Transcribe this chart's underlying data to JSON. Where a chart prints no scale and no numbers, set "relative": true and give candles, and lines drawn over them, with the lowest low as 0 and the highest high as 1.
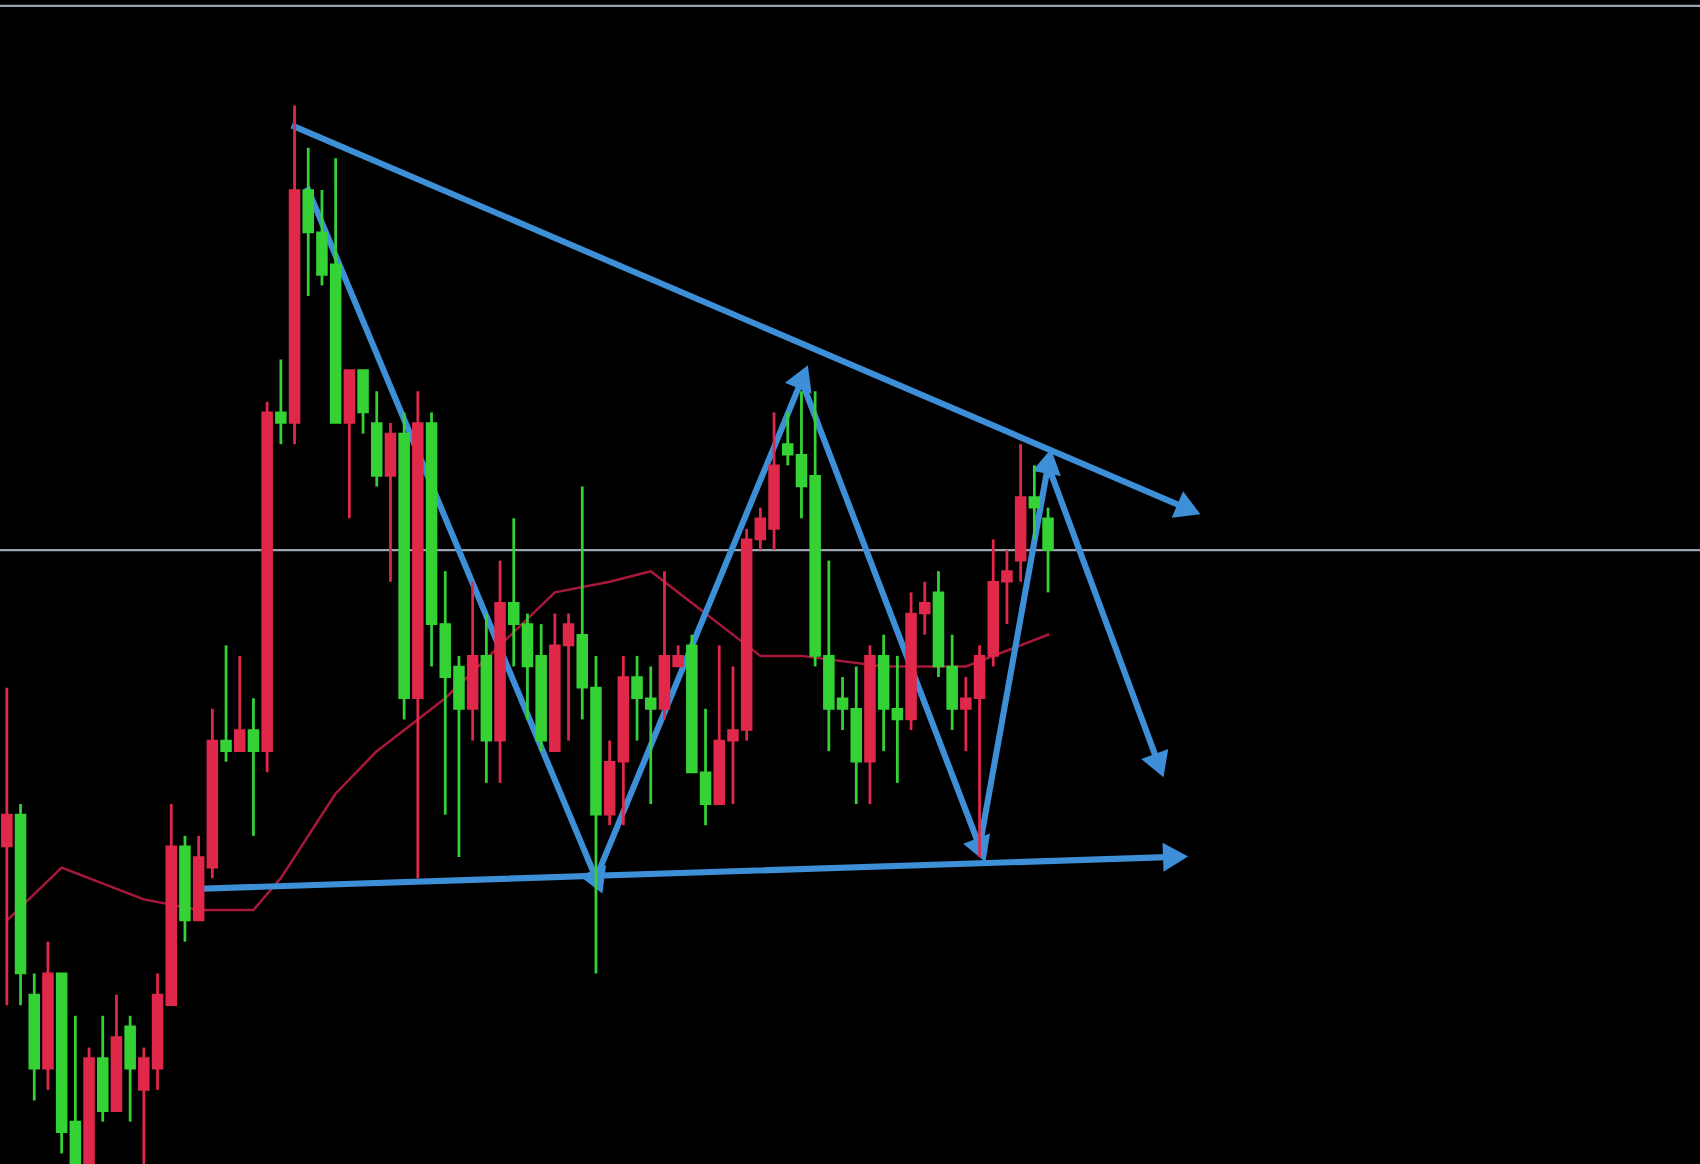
{
  "chart_data": {
    "type": "candlestick",
    "relative": true,
    "categories": [
      null,
      null,
      null,
      null,
      null,
      null,
      null,
      null,
      null,
      null,
      null,
      null,
      null,
      null,
      null,
      null,
      null,
      null,
      null,
      null,
      null,
      null,
      null,
      null,
      null,
      null,
      null,
      null,
      null,
      null,
      null,
      null,
      null,
      null,
      null,
      null,
      null,
      null,
      null,
      null,
      null,
      null,
      null,
      null,
      null,
      null,
      null,
      null,
      null,
      null,
      null,
      null,
      null,
      null,
      null,
      null,
      null,
      null,
      null,
      null,
      null,
      null,
      null,
      null,
      null,
      null,
      null,
      null,
      null,
      null,
      null,
      null,
      null,
      null,
      null,
      null,
      null,
      null,
      null,
      null,
      null,
      null,
      null,
      null,
      null,
      null,
      null,
      null
    ],
    "ohlc": [
      [
        0.3,
        0.45,
        0.15,
        0.33
      ],
      [
        0.33,
        0.34,
        0.15,
        0.18
      ],
      [
        0.16,
        0.18,
        0.06,
        0.09
      ],
      [
        0.09,
        0.21,
        0.07,
        0.18
      ],
      [
        0.18,
        0.18,
        0.01,
        0.03
      ],
      [
        0.04,
        0.14,
        0,
        0
      ],
      [
        0,
        0.11,
        0,
        0.1
      ],
      [
        0.1,
        0.14,
        0.04,
        0.05
      ],
      [
        0.05,
        0.16,
        0.05,
        0.12
      ],
      [
        0.13,
        0.14,
        0.04,
        0.09
      ],
      [
        0.07,
        0.11,
        0,
        0.1
      ],
      [
        0.09,
        0.18,
        0.07,
        0.16
      ],
      [
        0.15,
        0.34,
        0.15,
        0.3
      ],
      [
        0.3,
        0.31,
        0.21,
        0.23
      ],
      [
        0.23,
        0.31,
        0.23,
        0.29
      ],
      [
        0.28,
        0.43,
        0.27,
        0.4
      ],
      [
        0.4,
        0.49,
        0.38,
        0.39
      ],
      [
        0.39,
        0.48,
        0.39,
        0.41
      ],
      [
        0.41,
        0.44,
        0.31,
        0.39
      ],
      [
        0.39,
        0.72,
        0.37,
        0.71
      ],
      [
        0.71,
        0.76,
        0.68,
        0.7
      ],
      [
        0.7,
        1,
        0.68,
        0.92
      ],
      [
        0.92,
        0.96,
        0.82,
        0.88
      ],
      [
        0.88,
        0.92,
        0.83,
        0.84
      ],
      [
        0.85,
        0.95,
        0.7,
        0.7
      ],
      [
        0.7,
        0.75,
        0.61,
        0.75
      ],
      [
        0.75,
        0.75,
        0.69,
        0.71
      ],
      [
        0.7,
        0.73,
        0.64,
        0.65
      ],
      [
        0.65,
        0.7,
        0.55,
        0.69
      ],
      [
        0.69,
        0.71,
        0.42,
        0.44
      ],
      [
        0.44,
        0.73,
        0.27,
        0.7
      ],
      [
        0.7,
        0.71,
        0.47,
        0.51
      ],
      [
        0.51,
        0.56,
        0.33,
        0.46
      ],
      [
        0.47,
        0.48,
        0.29,
        0.43
      ],
      [
        0.43,
        0.55,
        0.4,
        0.48
      ],
      [
        0.48,
        0.52,
        0.36,
        0.4
      ],
      [
        0.4,
        0.57,
        0.36,
        0.53
      ],
      [
        0.53,
        0.61,
        0.47,
        0.51
      ],
      [
        0.51,
        0.52,
        0.42,
        0.47
      ],
      [
        0.48,
        0.51,
        0.39,
        0.4
      ],
      [
        0.39,
        0.52,
        0.39,
        0.49
      ],
      [
        0.49,
        0.52,
        0.4,
        0.51
      ],
      [
        0.5,
        0.64,
        0.42,
        0.45
      ],
      [
        0.45,
        0.48,
        0.18,
        0.33
      ],
      [
        0.33,
        0.4,
        0.32,
        0.38
      ],
      [
        0.38,
        0.48,
        0.32,
        0.46
      ],
      [
        0.46,
        0.48,
        0.4,
        0.44
      ],
      [
        0.44,
        0.47,
        0.34,
        0.43
      ],
      [
        0.43,
        0.56,
        0.42,
        0.48
      ],
      [
        0.47,
        0.49,
        0.47,
        0.48
      ],
      [
        0.49,
        0.5,
        0.37,
        0.37
      ],
      [
        0.37,
        0.43,
        0.32,
        0.34
      ],
      [
        0.34,
        0.49,
        0.34,
        0.4
      ],
      [
        0.4,
        0.47,
        0.34,
        0.41
      ],
      [
        0.41,
        0.6,
        0.4,
        0.59
      ],
      [
        0.59,
        0.62,
        0.58,
        0.61
      ],
      [
        0.6,
        0.71,
        0.58,
        0.66
      ],
      [
        0.68,
        0.71,
        0.66,
        0.67
      ],
      [
        0.67,
        0.73,
        0.61,
        0.64
      ],
      [
        0.65,
        0.73,
        0.47,
        0.48
      ],
      [
        0.48,
        0.57,
        0.39,
        0.43
      ],
      [
        0.44,
        0.46,
        0.41,
        0.43
      ],
      [
        0.43,
        0.47,
        0.34,
        0.38
      ],
      [
        0.38,
        0.49,
        0.34,
        0.48
      ],
      [
        0.48,
        0.5,
        0.39,
        0.43
      ],
      [
        0.43,
        0.48,
        0.36,
        0.42
      ],
      [
        0.42,
        0.54,
        0.41,
        0.52
      ],
      [
        0.52,
        0.55,
        0.5,
        0.53
      ],
      [
        0.54,
        0.56,
        0.46,
        0.47
      ],
      [
        0.47,
        0.5,
        0.41,
        0.43
      ],
      [
        0.43,
        0.46,
        0.39,
        0.44
      ],
      [
        0.44,
        0.49,
        0.29,
        0.48
      ],
      [
        0.48,
        0.59,
        0.47,
        0.55
      ],
      [
        0.55,
        0.58,
        0.51,
        0.56
      ],
      [
        0.57,
        0.68,
        0.55,
        0.63
      ],
      [
        0.63,
        0.66,
        0.59,
        0.62
      ],
      [
        0.61,
        0.62,
        0.54,
        0.58
      ],
      null,
      null,
      null,
      null,
      null,
      null,
      null,
      null,
      null,
      null,
      null
    ],
    "colors": [
      "#e0284a",
      "#35d235",
      "#35d235",
      "#e0284a",
      "#35d235",
      "#35d235",
      "#e0284a",
      "#35d235",
      "#e0284a",
      "#35d235",
      "#e0284a",
      "#e0284a",
      "#e0284a",
      "#35d235",
      "#e0284a",
      "#e0284a",
      "#35d235",
      "#e0284a",
      "#35d235",
      "#e0284a",
      "#35d235",
      "#e0284a",
      "#35d235",
      "#35d235",
      "#35d235",
      "#e0284a",
      "#35d235",
      "#35d235",
      "#e0284a",
      "#35d235",
      "#e0284a",
      "#35d235",
      "#35d235",
      "#35d235",
      "#e0284a",
      "#35d235",
      "#e0284a",
      "#35d235",
      "#35d235",
      "#35d235",
      "#e0284a",
      "#e0284a",
      "#35d235",
      "#35d235",
      "#e0284a",
      "#e0284a",
      "#35d235",
      "#35d235",
      "#e0284a",
      "#e0284a",
      "#35d235",
      "#35d235",
      "#e0284a",
      "#e0284a",
      "#e0284a",
      "#e0284a",
      "#e0284a",
      "#35d235",
      "#35d235",
      "#35d235",
      "#35d235",
      "#35d235",
      "#35d235",
      "#e0284a",
      "#35d235",
      "#35d235",
      "#e0284a",
      "#e0284a",
      "#35d235",
      "#35d235",
      "#e0284a",
      "#e0284a",
      "#e0284a",
      "#e0284a",
      "#e0284a",
      "#35d235",
      "#35d235",
      null,
      null,
      null,
      null,
      null,
      null,
      null,
      null,
      null,
      null,
      null
    ],
    "series": [
      {
        "type": "line",
        "color": "#a8183a",
        "values": [
          0.23,
          null,
          null,
          null,
          0.28,
          null,
          null,
          null,
          null,
          null,
          0.25,
          null,
          null,
          null,
          0.24,
          null,
          null,
          null,
          0.24,
          null,
          0.27,
          null,
          null,
          null,
          0.35,
          null,
          null,
          0.39,
          null,
          null,
          null,
          null,
          0.44,
          null,
          null,
          null,
          0.49,
          null,
          null,
          null,
          0.54,
          null,
          null,
          null,
          0.55,
          null,
          null,
          0.56,
          null,
          null,
          null,
          0.52,
          0.51,
          null,
          null,
          0.48,
          null,
          null,
          0.48,
          null,
          null,
          null,
          null,
          null,
          0.47,
          null,
          null,
          null,
          null,
          null,
          0.47,
          null,
          null,
          null,
          null,
          null,
          0.5,
          null,
          null,
          null,
          null,
          null,
          null,
          null,
          null,
          null,
          null,
          null
        ]
      },
      {
        "type": "line",
        "marker": "triangle",
        "color": "#3d8fd8",
        "values": [
          null,
          null,
          null,
          null,
          null,
          null,
          null,
          null,
          null,
          null,
          null,
          null,
          null,
          null,
          null,
          null,
          null,
          null,
          null,
          null,
          null,
          0.98,
          null,
          null,
          null,
          null,
          null,
          null,
          null,
          null,
          null,
          null,
          null,
          null,
          null,
          null,
          null,
          null,
          null,
          null,
          null,
          null,
          null,
          null,
          null,
          null,
          null,
          null,
          null,
          null,
          null,
          null,
          null,
          null,
          null,
          null,
          null,
          null,
          null,
          null,
          null,
          null,
          null,
          null,
          null,
          null,
          null,
          null,
          null,
          null,
          null,
          null,
          null,
          null,
          null,
          null,
          null,
          null,
          null,
          null,
          null,
          null,
          null,
          null,
          null,
          null,
          0.62,
          null
        ]
      },
      {
        "type": "line",
        "marker": "triangle",
        "color": "#3d8fd8",
        "values": [
          null,
          null,
          null,
          null,
          null,
          null,
          null,
          null,
          null,
          null,
          null,
          null,
          null,
          null,
          null,
          null,
          null,
          null,
          null,
          null,
          null,
          null,
          0.92,
          null,
          null,
          null,
          null,
          null,
          null,
          null,
          null,
          null,
          null,
          null,
          null,
          null,
          null,
          null,
          null,
          null,
          null,
          null,
          null,
          0.27,
          null,
          null,
          null,
          null,
          null,
          null,
          null,
          null,
          null,
          null,
          null,
          null,
          null,
          null,
          0.74,
          null,
          null,
          null,
          null,
          null,
          null,
          null,
          null,
          null,
          null,
          null,
          null,
          0.3,
          null,
          null,
          null,
          null,
          0.66,
          null,
          null,
          null,
          null,
          null,
          null,
          null,
          0.38,
          null,
          null,
          null
        ]
      },
      {
        "type": "line",
        "marker": "triangle",
        "color": "#3d8fd8",
        "values": [
          null,
          null,
          null,
          null,
          null,
          null,
          null,
          null,
          null,
          null,
          null,
          null,
          null,
          null,
          0.26,
          null,
          null,
          null,
          null,
          null,
          null,
          null,
          null,
          null,
          null,
          null,
          null,
          null,
          null,
          null,
          null,
          null,
          null,
          null,
          null,
          null,
          null,
          null,
          null,
          null,
          null,
          null,
          null,
          null,
          null,
          null,
          null,
          null,
          null,
          null,
          null,
          null,
          null,
          null,
          null,
          null,
          null,
          null,
          null,
          null,
          null,
          null,
          null,
          null,
          null,
          null,
          null,
          null,
          null,
          null,
          null,
          null,
          null,
          null,
          null,
          null,
          null,
          null,
          null,
          null,
          null,
          null,
          null,
          null,
          null,
          0.29,
          null,
          null
        ]
      }
    ],
    "ref_lines": [
      {
        "axis": "y",
        "value": 0.58,
        "label": null,
        "color": "#9aa4b0"
      }
    ]
  }
}
